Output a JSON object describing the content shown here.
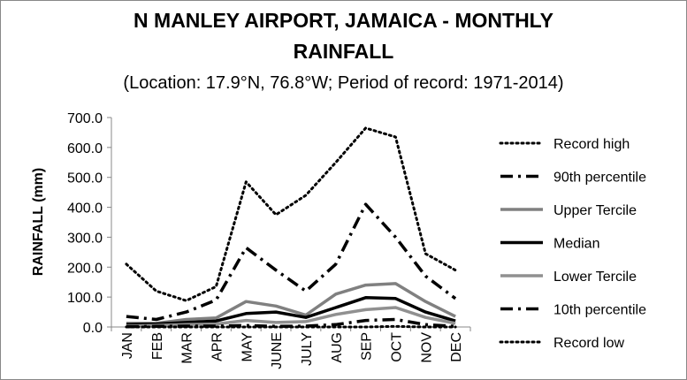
{
  "title_line1": "N MANLEY AIRPORT, JAMAICA - MONTHLY",
  "title_line2": "RAINFALL",
  "subtitle": "(Location: 17.9°N, 76.8°W; Period of record: 1971-2014)",
  "chart_data": {
    "type": "line",
    "title": "N MANLEY AIRPORT, JAMAICA - MONTHLY RAINFALL",
    "subtitle": "(Location: 17.9°N, 76.8°W; Period of record: 1971-2014)",
    "xlabel": "",
    "ylabel": "RAINFALL (mm)",
    "ylim": [
      0,
      700
    ],
    "yticks": [
      "0.0",
      "100.0",
      "200.0",
      "300.0",
      "400.0",
      "500.0",
      "600.0",
      "700.0"
    ],
    "grid": false,
    "legend_position": "right",
    "categories": [
      "JAN",
      "FEB",
      "MAR",
      "APR",
      "MAY",
      "JUNE",
      "JULY",
      "AUG",
      "SEP",
      "OCT",
      "NOV",
      "DEC"
    ],
    "series": [
      {
        "name": "Record high",
        "style": "dotted",
        "color": "#000000",
        "values": [
          210,
          120,
          88,
          135,
          485,
          375,
          440,
          550,
          665,
          635,
          245,
          190
        ]
      },
      {
        "name": "90th percentile",
        "style": "dashdot",
        "color": "#000000",
        "values": [
          35,
          25,
          50,
          90,
          265,
          190,
          120,
          210,
          410,
          300,
          170,
          95
        ]
      },
      {
        "name": "Upper Tercile",
        "style": "solid",
        "color": "#808080",
        "values": [
          12,
          12,
          25,
          30,
          85,
          70,
          40,
          110,
          140,
          145,
          85,
          35
        ]
      },
      {
        "name": "Median",
        "style": "solid",
        "color": "#000000",
        "values": [
          8,
          10,
          15,
          20,
          45,
          50,
          32,
          65,
          98,
          95,
          50,
          20
        ]
      },
      {
        "name": "Lower Tercile",
        "style": "solid",
        "color": "#909090",
        "values": [
          3,
          5,
          8,
          10,
          22,
          15,
          18,
          42,
          58,
          65,
          32,
          12
        ]
      },
      {
        "name": "10th percentile",
        "style": "dashdot",
        "color": "#000000",
        "values": [
          1,
          2,
          3,
          3,
          5,
          2,
          3,
          8,
          22,
          25,
          8,
          2
        ]
      },
      {
        "name": "Record low",
        "style": "dotted",
        "color": "#000000",
        "values": [
          0,
          0,
          0,
          0,
          0,
          0,
          0,
          0,
          0,
          2,
          0,
          0
        ]
      }
    ]
  }
}
